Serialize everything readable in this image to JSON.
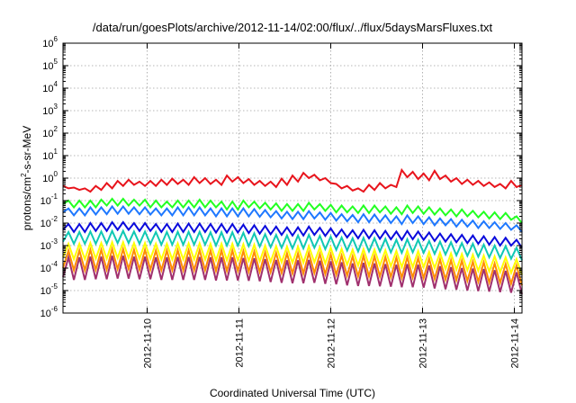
{
  "chart_data": {
    "type": "line",
    "title": "/data/run/goesPlots/archive/2012-11-14/02:00/flux/../flux/5daysMarsFluxes.txt",
    "xlabel": "Coordinated Universal Time (UTC)",
    "ylabel": {
      "base": "protons/cm",
      "sup": "2",
      "rest": "-s-sr-MeV"
    },
    "x_range": [
      "2012-11-09T02:00",
      "2012-11-14T02:00"
    ],
    "x_ticks": [
      "2012-11-10",
      "2012-11-11",
      "2012-11-12",
      "2012-11-13",
      "2012-11-14"
    ],
    "y_scale": "log",
    "ylim": [
      1e-06,
      1000000.0
    ],
    "y_ticks": [
      {
        "base": "10",
        "exp": "-6",
        "value": 1e-06
      },
      {
        "base": "10",
        "exp": "-5",
        "value": 1e-05
      },
      {
        "base": "10",
        "exp": "-4",
        "value": 0.0001
      },
      {
        "base": "10",
        "exp": "-3",
        "value": 0.001
      },
      {
        "base": "10",
        "exp": "-2",
        "value": 0.01
      },
      {
        "base": "10",
        "exp": "-1",
        "value": 0.1
      },
      {
        "base": "10",
        "exp": "0",
        "value": 1
      },
      {
        "base": "10",
        "exp": "1",
        "value": 10
      },
      {
        "base": "10",
        "exp": "2",
        "value": 100
      },
      {
        "base": "10",
        "exp": "3",
        "value": 1000
      },
      {
        "base": "10",
        "exp": "4",
        "value": 10000
      },
      {
        "base": "10",
        "exp": "5",
        "value": 100000
      },
      {
        "base": "10",
        "exp": "6",
        "value": 1000000
      }
    ],
    "grid": true,
    "legend": "none",
    "series": [
      {
        "color": "#e8141c",
        "values": [
          0.45,
          0.35,
          0.38,
          0.3,
          0.35,
          0.25,
          0.45,
          0.3,
          0.6,
          0.35,
          0.75,
          0.45,
          0.85,
          0.5,
          0.7,
          0.45,
          0.75,
          0.45,
          0.85,
          0.5,
          0.95,
          0.55,
          0.85,
          0.5,
          1.1,
          0.6,
          1.0,
          0.55,
          0.85,
          0.5,
          1.3,
          0.7,
          1.1,
          0.6,
          0.9,
          0.5,
          0.75,
          0.45,
          0.7,
          0.4,
          0.95,
          0.5,
          1.3,
          0.7,
          1.7,
          1.0,
          1.4,
          0.8,
          1.0,
          0.6,
          0.55,
          0.35,
          0.45,
          0.28,
          0.35,
          0.25,
          0.5,
          0.3,
          0.6,
          0.35,
          0.5,
          0.4,
          2.3,
          1.1,
          1.9,
          0.9,
          1.6,
          0.8,
          2.1,
          0.9,
          1.3,
          0.7,
          1.0,
          0.55,
          0.85,
          0.5,
          0.75,
          0.45,
          0.65,
          0.4,
          0.55,
          0.35,
          0.75,
          0.4,
          0.5
        ]
      },
      {
        "color": "#22ff22",
        "values": [
          0.07,
          0.1,
          0.05,
          0.1,
          0.05,
          0.1,
          0.05,
          0.11,
          0.06,
          0.12,
          0.06,
          0.12,
          0.06,
          0.11,
          0.06,
          0.11,
          0.05,
          0.1,
          0.05,
          0.09,
          0.05,
          0.1,
          0.05,
          0.1,
          0.05,
          0.11,
          0.05,
          0.1,
          0.05,
          0.09,
          0.04,
          0.09,
          0.04,
          0.1,
          0.05,
          0.09,
          0.045,
          0.08,
          0.04,
          0.075,
          0.035,
          0.07,
          0.035,
          0.07,
          0.035,
          0.08,
          0.04,
          0.07,
          0.035,
          0.065,
          0.03,
          0.06,
          0.03,
          0.055,
          0.028,
          0.06,
          0.028,
          0.06,
          0.03,
          0.055,
          0.026,
          0.05,
          0.025,
          0.06,
          0.028,
          0.055,
          0.026,
          0.05,
          0.024,
          0.045,
          0.022,
          0.04,
          0.02,
          0.04,
          0.02,
          0.035,
          0.018,
          0.032,
          0.016,
          0.03,
          0.015,
          0.028,
          0.014,
          0.02,
          0.01
        ]
      },
      {
        "color": "#1e78ff",
        "values": [
          0.03,
          0.045,
          0.022,
          0.045,
          0.022,
          0.05,
          0.024,
          0.05,
          0.025,
          0.055,
          0.026,
          0.055,
          0.026,
          0.05,
          0.025,
          0.05,
          0.024,
          0.045,
          0.022,
          0.045,
          0.022,
          0.05,
          0.022,
          0.05,
          0.022,
          0.05,
          0.022,
          0.045,
          0.02,
          0.045,
          0.02,
          0.045,
          0.02,
          0.045,
          0.02,
          0.042,
          0.019,
          0.038,
          0.018,
          0.034,
          0.016,
          0.032,
          0.015,
          0.032,
          0.015,
          0.034,
          0.016,
          0.03,
          0.014,
          0.028,
          0.013,
          0.025,
          0.012,
          0.023,
          0.011,
          0.025,
          0.011,
          0.024,
          0.011,
          0.022,
          0.01,
          0.02,
          0.009,
          0.022,
          0.01,
          0.02,
          0.009,
          0.018,
          0.008,
          0.016,
          0.008,
          0.015,
          0.007,
          0.014,
          0.007,
          0.013,
          0.006,
          0.012,
          0.006,
          0.011,
          0.0055,
          0.01,
          0.005,
          0.008,
          0.004
        ]
      },
      {
        "color": "#0a0adc",
        "values": [
          0.005,
          0.009,
          0.004,
          0.009,
          0.004,
          0.01,
          0.0045,
          0.01,
          0.0045,
          0.011,
          0.005,
          0.011,
          0.005,
          0.01,
          0.0045,
          0.01,
          0.0045,
          0.009,
          0.004,
          0.009,
          0.004,
          0.0095,
          0.004,
          0.0095,
          0.004,
          0.0095,
          0.004,
          0.009,
          0.0038,
          0.009,
          0.0038,
          0.009,
          0.0038,
          0.0085,
          0.0036,
          0.008,
          0.0034,
          0.0075,
          0.0032,
          0.007,
          0.003,
          0.0065,
          0.0028,
          0.0065,
          0.0028,
          0.007,
          0.003,
          0.0062,
          0.0027,
          0.0058,
          0.0025,
          0.0052,
          0.0023,
          0.0048,
          0.0021,
          0.005,
          0.0021,
          0.0048,
          0.002,
          0.0045,
          0.0019,
          0.0042,
          0.0018,
          0.0045,
          0.0019,
          0.0042,
          0.0018,
          0.0038,
          0.0016,
          0.0034,
          0.0015,
          0.0032,
          0.0014,
          0.003,
          0.0013,
          0.0028,
          0.0012,
          0.0026,
          0.0011,
          0.0024,
          0.001,
          0.0022,
          0.001,
          0.0018,
          0.0008
        ]
      },
      {
        "color": "#10c8b4",
        "values": [
          0.0015,
          0.004,
          0.0012,
          0.004,
          0.0012,
          0.0042,
          0.0012,
          0.0042,
          0.0012,
          0.0045,
          0.0013,
          0.0045,
          0.0013,
          0.0042,
          0.0012,
          0.0042,
          0.0012,
          0.004,
          0.0011,
          0.004,
          0.0011,
          0.0041,
          0.0011,
          0.0041,
          0.0011,
          0.0041,
          0.0011,
          0.0039,
          0.001,
          0.0039,
          0.001,
          0.0039,
          0.001,
          0.0037,
          0.00095,
          0.0035,
          0.0009,
          0.0032,
          0.00085,
          0.003,
          0.0008,
          0.0028,
          0.00075,
          0.0028,
          0.00075,
          0.003,
          0.0008,
          0.0027,
          0.0007,
          0.0025,
          0.00065,
          0.0023,
          0.0006,
          0.0021,
          0.00055,
          0.0022,
          0.00055,
          0.0021,
          0.00055,
          0.002,
          0.0005,
          0.0018,
          0.00048,
          0.0019,
          0.0005,
          0.0018,
          0.00048,
          0.0016,
          0.00043,
          0.0015,
          0.0004,
          0.0014,
          0.00037,
          0.0013,
          0.00035,
          0.0012,
          0.00032,
          0.0011,
          0.0003,
          0.001,
          0.00028,
          0.00095,
          0.00026,
          0.0008,
          0.00022
        ]
      },
      {
        "color": "#ffff00",
        "values": [
          0.0003,
          0.0012,
          0.00025,
          0.0012,
          0.00025,
          0.0013,
          0.00026,
          0.0013,
          0.00026,
          0.0014,
          0.00028,
          0.0014,
          0.00028,
          0.0013,
          0.00026,
          0.0013,
          0.00026,
          0.0012,
          0.00024,
          0.0012,
          0.00024,
          0.00125,
          0.00024,
          0.00125,
          0.00024,
          0.00125,
          0.00024,
          0.0012,
          0.00022,
          0.0012,
          0.00022,
          0.0012,
          0.00022,
          0.00115,
          0.00021,
          0.0011,
          0.0002,
          0.001,
          0.00019,
          0.00095,
          0.00018,
          0.0009,
          0.00017,
          0.0009,
          0.00017,
          0.00095,
          0.00018,
          0.00085,
          0.00016,
          0.0008,
          0.00015,
          0.00072,
          0.00014,
          0.00066,
          0.00013,
          0.0007,
          0.00013,
          0.00066,
          0.00013,
          0.00062,
          0.00012,
          0.00058,
          0.00011,
          0.0006,
          0.00011,
          0.00057,
          0.00011,
          0.00052,
          0.0001,
          0.00048,
          9e-05,
          0.00045,
          8.5e-05,
          0.00042,
          8e-05,
          0.00039,
          7.5e-05,
          0.00036,
          7e-05,
          0.00033,
          6.5e-05,
          0.0003,
          6e-05,
          0.00025,
          5e-05
        ]
      },
      {
        "color": "#ff8c00",
        "values": [
          0.0001,
          0.0006,
          8e-05,
          0.0006,
          8e-05,
          0.00065,
          8.5e-05,
          0.00065,
          8.5e-05,
          0.0007,
          9e-05,
          0.0007,
          9e-05,
          0.00065,
          8.5e-05,
          0.00065,
          8.5e-05,
          0.0006,
          8e-05,
          0.0006,
          8e-05,
          0.00062,
          8e-05,
          0.00062,
          8e-05,
          0.00062,
          8e-05,
          0.0006,
          7.5e-05,
          0.0006,
          7.5e-05,
          0.0006,
          7.5e-05,
          0.00057,
          7e-05,
          0.00054,
          6.8e-05,
          0.0005,
          6.5e-05,
          0.00047,
          6e-05,
          0.00045,
          5.7e-05,
          0.00045,
          5.7e-05,
          0.00047,
          6e-05,
          0.00042,
          5.4e-05,
          0.0004,
          5e-05,
          0.00036,
          4.6e-05,
          0.00033,
          4.3e-05,
          0.00035,
          4.3e-05,
          0.00033,
          4.2e-05,
          0.00031,
          4e-05,
          0.00029,
          3.7e-05,
          0.0003,
          3.8e-05,
          0.00028,
          3.6e-05,
          0.00026,
          3.3e-05,
          0.00024,
          3.1e-05,
          0.00022,
          2.9e-05,
          0.00021,
          2.7e-05,
          0.00019,
          2.5e-05,
          0.00018,
          2.3e-05,
          0.00016,
          2.2e-05,
          0.00015,
          2e-05,
          0.00013,
          1.7e-05
        ]
      },
      {
        "color": "#a0306e",
        "values": [
          4e-05,
          0.0003,
          3e-05,
          0.0003,
          3e-05,
          0.00032,
          3.2e-05,
          0.00032,
          3.2e-05,
          0.00035,
          3.4e-05,
          0.00035,
          3.4e-05,
          0.00032,
          3.2e-05,
          0.00032,
          3.2e-05,
          0.0003,
          3e-05,
          0.0003,
          3e-05,
          0.00031,
          3e-05,
          0.00031,
          3e-05,
          0.00031,
          3e-05,
          0.0003,
          2.8e-05,
          0.0003,
          2.8e-05,
          0.0003,
          2.8e-05,
          0.00028,
          2.7e-05,
          0.00027,
          2.6e-05,
          0.00025,
          2.4e-05,
          0.00023,
          2.2e-05,
          0.00022,
          2.1e-05,
          0.00022,
          2.1e-05,
          0.00023,
          2.2e-05,
          0.00021,
          2e-05,
          0.0002,
          1.9e-05,
          0.00018,
          1.7e-05,
          0.00016,
          1.6e-05,
          0.00017,
          1.6e-05,
          0.00016,
          1.55e-05,
          0.00015,
          1.5e-05,
          0.00014,
          1.4e-05,
          0.00015,
          1.4e-05,
          0.00014,
          1.35e-05,
          0.00013,
          1.25e-05,
          0.00012,
          1.15e-05,
          0.00011,
          1.1e-05,
          0.0001,
          1e-05,
          9.5e-05,
          9.5e-06,
          9e-05,
          9e-06,
          8e-05,
          8.5e-06,
          7.5e-05,
          8e-06,
          6.5e-05,
          7e-06
        ]
      }
    ]
  }
}
